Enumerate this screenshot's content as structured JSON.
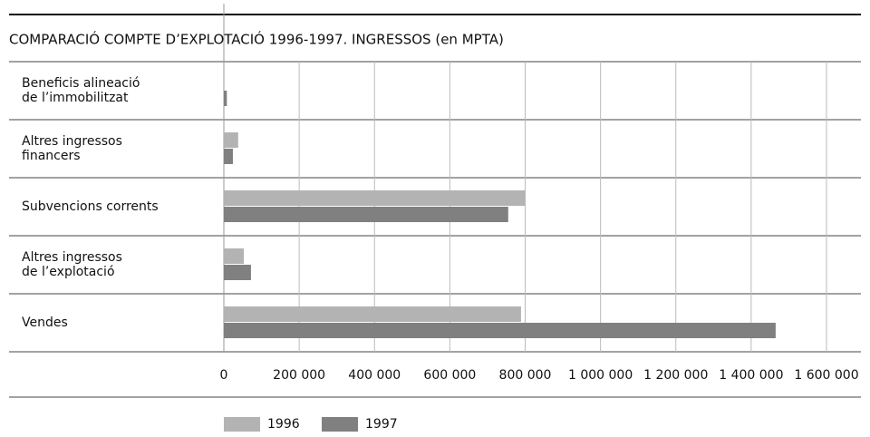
{
  "chart_data": {
    "type": "bar",
    "orientation": "horizontal",
    "title": "COMPARACIÓ COMPTE D’EXPLOTACIÓ 1996-1997. INGRESSOS (en MPTA)",
    "categories": [
      "Beneficis alineació\nde l’immobilitzat",
      "Altres ingressos\nfinancers",
      "Subvencions corrents",
      "Altres ingressos\nde l’explotació",
      "Vendes"
    ],
    "series": [
      {
        "name": "1996",
        "color": "#b3b3b3",
        "values": [
          null,
          38000,
          800000,
          53000,
          789000
        ]
      },
      {
        "name": "1997",
        "color": "#808080",
        "values": [
          8000,
          24000,
          755000,
          72000,
          1465000
        ]
      }
    ],
    "xlim": [
      0,
      1600000
    ],
    "xticks": [
      0,
      {
        "value": 200000,
        "label": "200 000"
      },
      {
        "value": 400000,
        "label": "400 000"
      },
      {
        "value": 600000,
        "label": "600 000"
      },
      {
        "value": 800000,
        "label": "800 000"
      },
      {
        "value": 1000000,
        "label": "1 000 000"
      },
      {
        "value": 1200000,
        "label": "1 200 000"
      },
      {
        "value": 1400000,
        "label": "1 400 000"
      },
      {
        "value": 1600000,
        "label": "1 600 000"
      }
    ],
    "grid": true,
    "legend": "bottom"
  }
}
